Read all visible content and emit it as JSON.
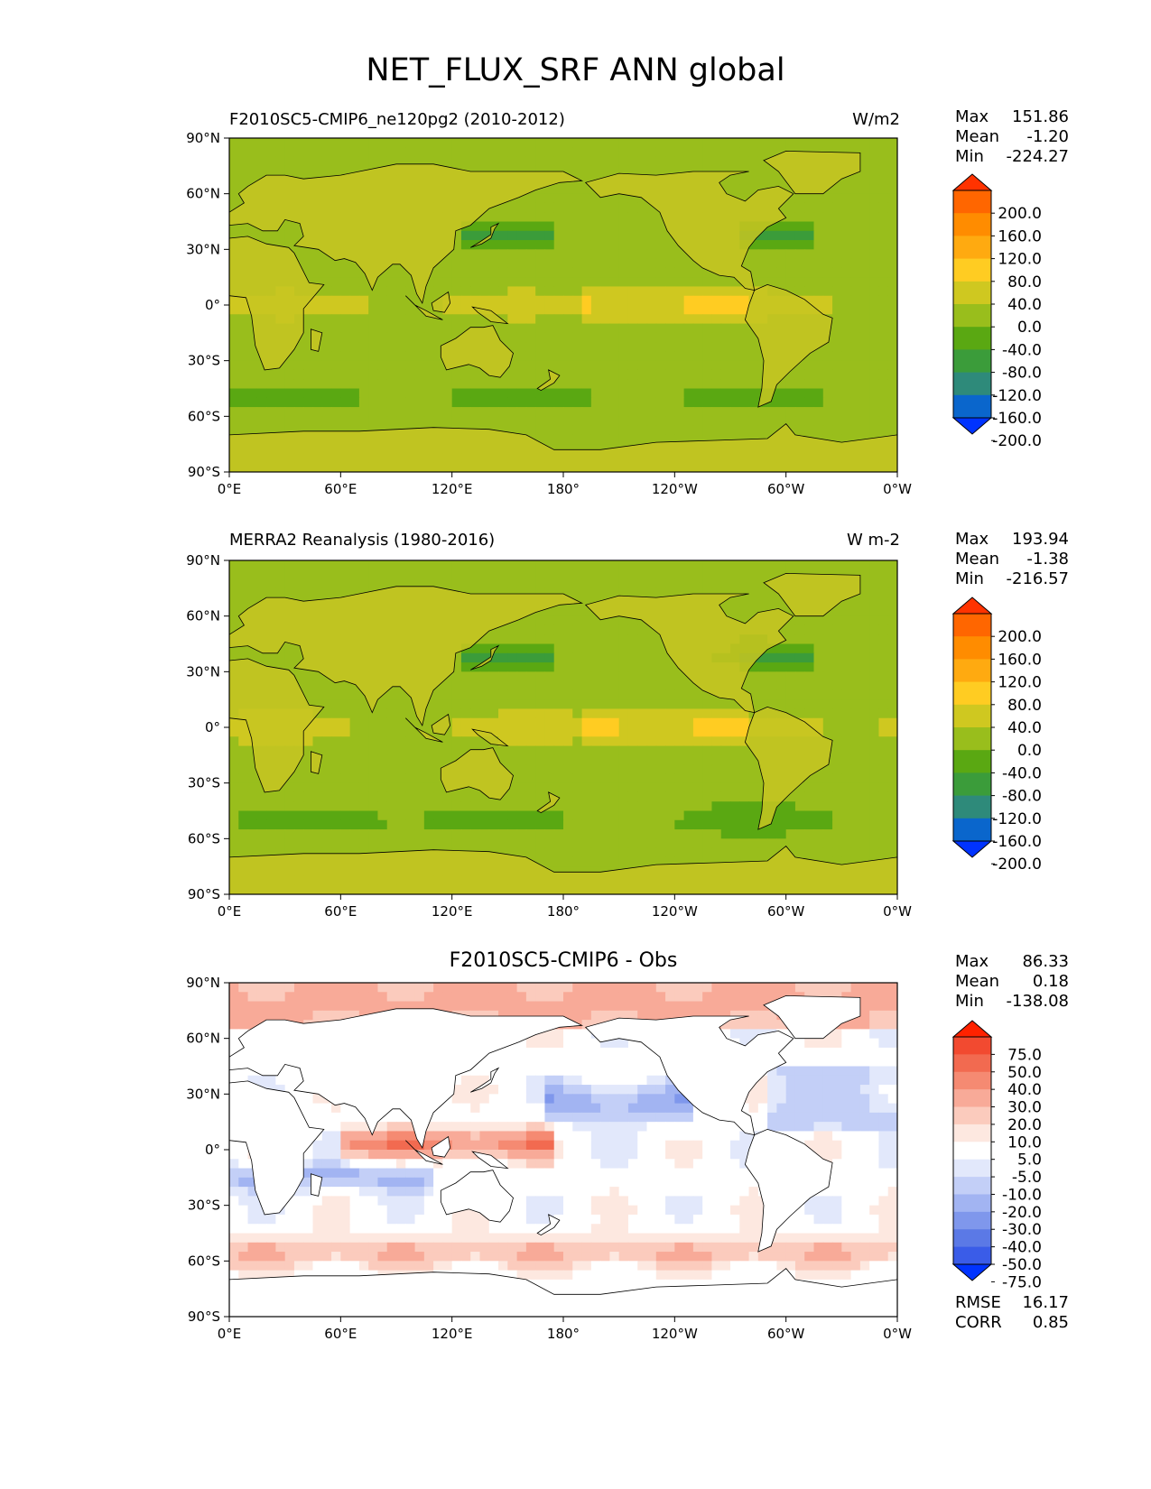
{
  "figure": {
    "title": "NET_FLUX_SRF ANN global"
  },
  "axes": {
    "lat_ticks": [
      "90°N",
      "60°N",
      "30°N",
      "0°",
      "30°S",
      "60°S",
      "90°S"
    ],
    "lon_ticks": [
      "0°E",
      "60°E",
      "120°E",
      "180°",
      "120°W",
      "60°W",
      "0°W"
    ]
  },
  "panels": [
    {
      "id": "test",
      "title": "F2010SC5-CMIP6_ne120pg2 (2010-2012)",
      "units": "W/m2",
      "stats": [
        {
          "label": "Max",
          "value": "151.86"
        },
        {
          "label": "Mean",
          "value": "-1.20"
        },
        {
          "label": "Min",
          "value": "-224.27"
        }
      ],
      "colorbar": {
        "labels": [
          "200.0",
          "160.0",
          "120.0",
          "80.0",
          "40.0",
          "0.0",
          "-40.0",
          "-80.0",
          "-120.0",
          "-160.0",
          "-200.0"
        ],
        "colors": [
          "#ff3300",
          "#ff6600",
          "#ff8c00",
          "#ffaa10",
          "#ffcc22",
          "#cfc820",
          "#99be1c",
          "#5aa812",
          "#3b9c3a",
          "#2e8a7a",
          "#0a66cc",
          "#0033ff"
        ]
      }
    },
    {
      "id": "reference",
      "title": "MERRA2 Reanalysis (1980-2016)",
      "units": "W m-2",
      "stats": [
        {
          "label": "Max",
          "value": "193.94"
        },
        {
          "label": "Mean",
          "value": "-1.38"
        },
        {
          "label": "Min",
          "value": "-216.57"
        }
      ],
      "colorbar": {
        "labels": [
          "200.0",
          "160.0",
          "120.0",
          "80.0",
          "40.0",
          "0.0",
          "-40.0",
          "-80.0",
          "-120.0",
          "-160.0",
          "-200.0"
        ],
        "colors": [
          "#ff3300",
          "#ff6600",
          "#ff8c00",
          "#ffaa10",
          "#ffcc22",
          "#cfc820",
          "#99be1c",
          "#5aa812",
          "#3b9c3a",
          "#2e8a7a",
          "#0a66cc",
          "#0033ff"
        ]
      }
    },
    {
      "id": "difference",
      "title": "F2010SC5-CMIP6 - Obs",
      "units": "",
      "stats": [
        {
          "label": "Max",
          "value": "86.33"
        },
        {
          "label": "Mean",
          "value": "0.18"
        },
        {
          "label": "Min",
          "value": "-138.08"
        }
      ],
      "colorbar": {
        "labels": [
          "75.0",
          "50.0",
          "40.0",
          "30.0",
          "20.0",
          "10.0",
          "5.0",
          "-5.0",
          "-10.0",
          "-20.0",
          "-30.0",
          "-40.0",
          "-50.0",
          "-75.0"
        ],
        "colors": [
          "#ff2200",
          "#f24a30",
          "#f26a50",
          "#f58a72",
          "#f8aa98",
          "#fbcbbd",
          "#fde8e0",
          "#ffffff",
          "#e2e8fb",
          "#c3cff7",
          "#a2b4f2",
          "#7f97ec",
          "#5b79e6",
          "#3a5ce8",
          "#0033ff"
        ]
      },
      "metrics": [
        {
          "label": "RMSE",
          "value": "16.17"
        },
        {
          "label": "CORR",
          "value": "0.85"
        }
      ]
    }
  ]
}
